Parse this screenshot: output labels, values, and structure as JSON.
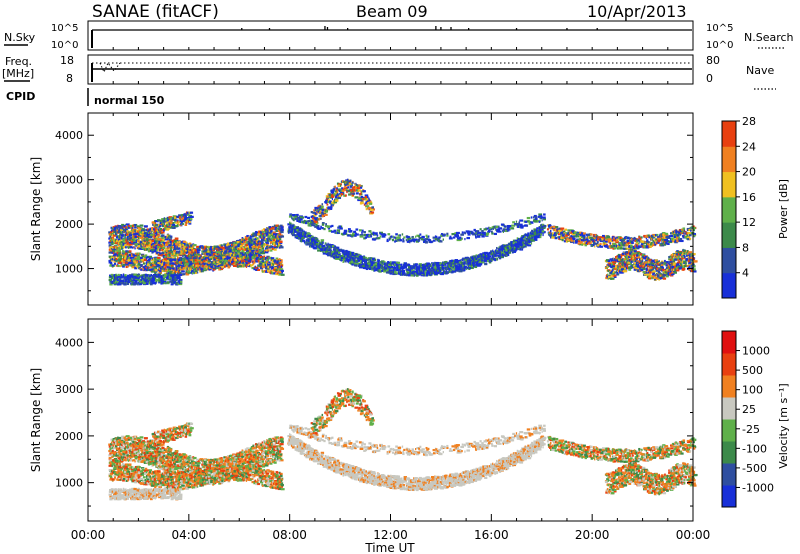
{
  "header": {
    "station": "SANAE (fitACF)",
    "beam": "Beam 09",
    "date": "10/Apr/2013"
  },
  "strip_labels": {
    "nsky": "N.Sky",
    "nsearch": "N.Search",
    "freq": "Freq.",
    "freq_unit": "[MHz]",
    "nave": "Nave",
    "cpid": "CPID",
    "cpid_value": "normal 150"
  },
  "strip_ticks": {
    "nsky": [
      "10^5",
      "10^0"
    ],
    "nsearch": [
      "10^5",
      "10^0"
    ],
    "freq": [
      "18",
      "8"
    ],
    "nave": [
      "80",
      "0"
    ]
  },
  "colors": {
    "power": [
      "#1830d8",
      "#2f4fa0",
      "#3c8a4a",
      "#5fb04a",
      "#f0c020",
      "#f08020",
      "#e84010",
      "#e01010"
    ],
    "velocity": [
      "#1830d8",
      "#2f4fa0",
      "#3c8a4a",
      "#5fb04a",
      "#c8c8c0",
      "#f08020",
      "#e84010",
      "#e01010"
    ]
  },
  "chart_data": [
    {
      "type": "heatmap",
      "quantity": "power",
      "ylabel": "Slant Range [km]",
      "xlabel": "",
      "xlim": [
        0,
        24
      ],
      "ylim": [
        180,
        4500
      ],
      "x_ticks": [
        0,
        4,
        8,
        12,
        16,
        20,
        24
      ],
      "y_ticks": [
        "1000",
        "2000",
        "3000",
        "4000"
      ],
      "y_tick_values": [
        1000,
        2000,
        3000,
        4000
      ],
      "colorbar": {
        "label": "Power [dB]",
        "ticks": [
          "4",
          "8",
          "12",
          "16",
          "20",
          "24",
          "28"
        ],
        "range": [
          0,
          30
        ]
      }
    },
    {
      "type": "heatmap",
      "quantity": "velocity",
      "ylabel": "Slant Range [km]",
      "xlabel": "Time UT",
      "xlim": [
        0,
        24
      ],
      "ylim": [
        180,
        4500
      ],
      "x_ticks": [
        0,
        4,
        8,
        12,
        16,
        20,
        24
      ],
      "x_tick_labels": [
        "00:00",
        "04:00",
        "08:00",
        "12:00",
        "16:00",
        "20:00",
        "00:00"
      ],
      "y_ticks": [
        "1000",
        "2000",
        "3000",
        "4000"
      ],
      "y_tick_values": [
        1000,
        2000,
        3000,
        4000
      ],
      "colorbar": {
        "label": "Velocity [m s⁻¹]",
        "ticks": [
          "1000",
          "500",
          "100",
          "25",
          "-25",
          "-100",
          "-500",
          "-1000"
        ]
      }
    }
  ]
}
